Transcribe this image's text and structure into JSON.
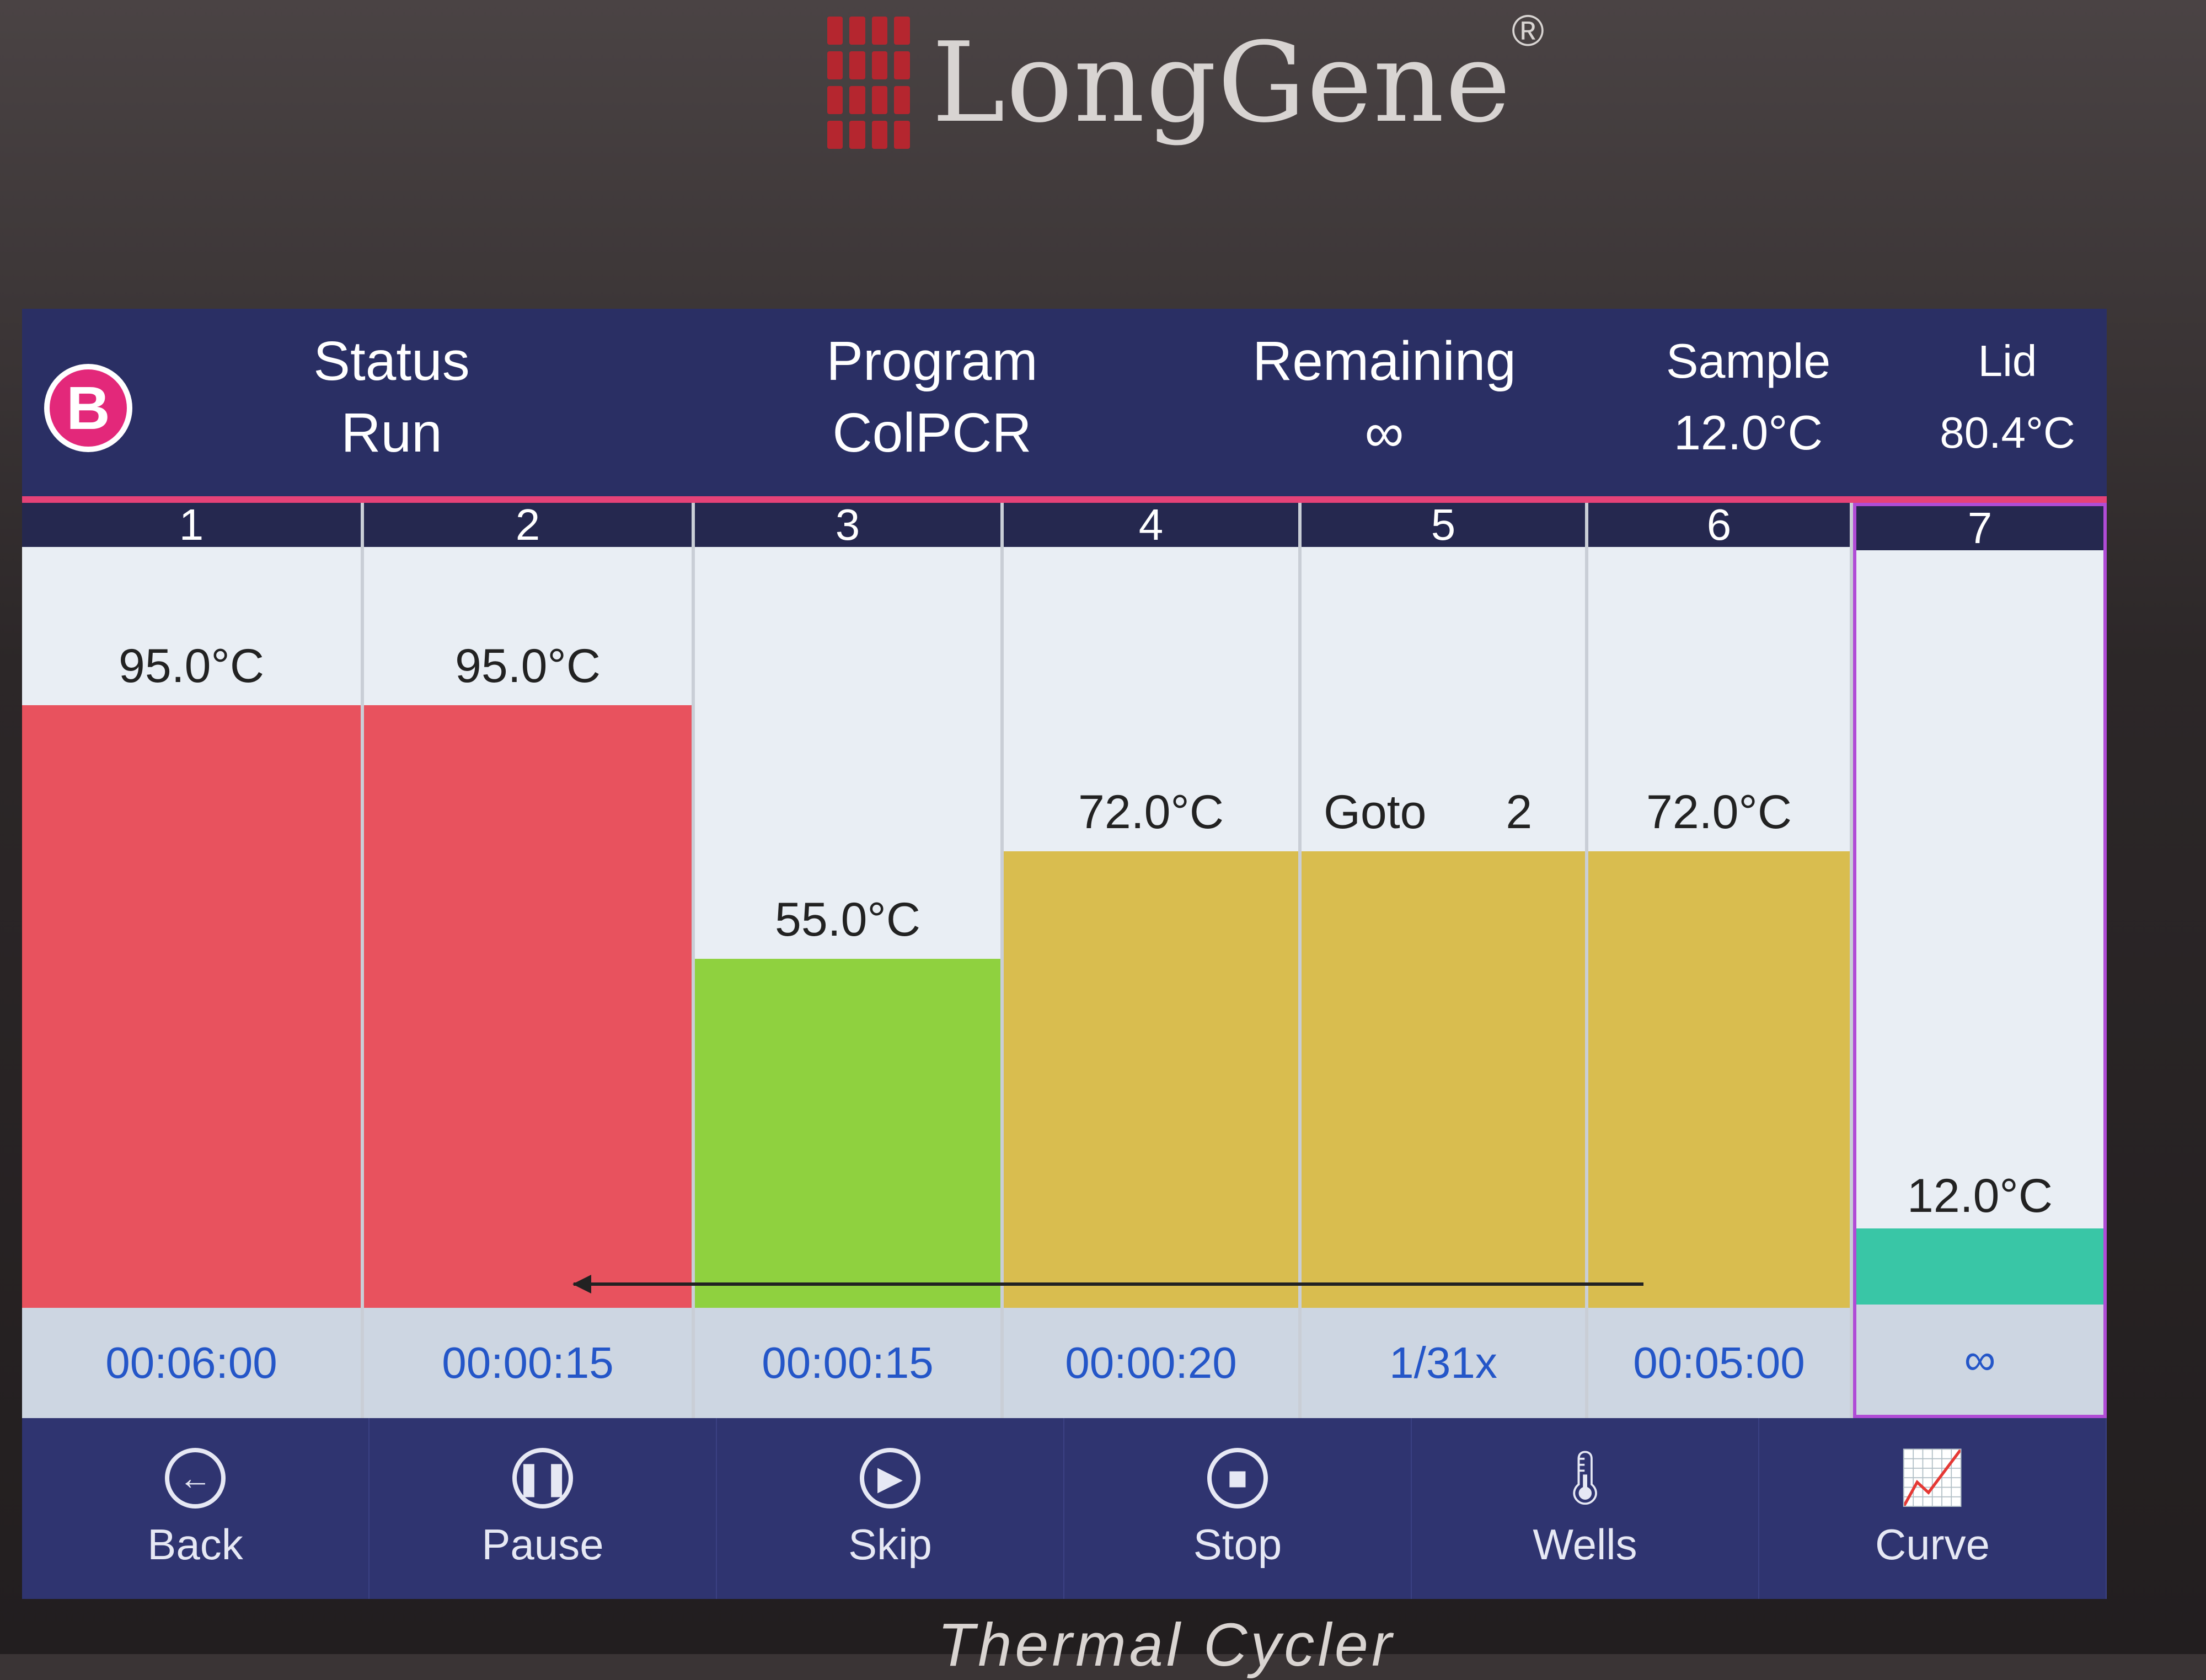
{
  "brand": {
    "name": "LongGene",
    "registered": "®"
  },
  "footer": {
    "label": "Thermal Cycler"
  },
  "header": {
    "badge": "B",
    "status_label": "Status",
    "status_value": "Run",
    "program_label": "Program",
    "program_value": "ColPCR",
    "remaining_label": "Remaining",
    "remaining_value": "∞",
    "sample_label": "Sample",
    "sample_value": "12.0°C",
    "lid_label": "Lid",
    "lid_value": "80.4°C"
  },
  "steps": [
    {
      "num": "1",
      "temp": "95.0°C",
      "temp_value": 95.0,
      "time": "00:06:00",
      "color": "#e8525e"
    },
    {
      "num": "2",
      "temp": "95.0°C",
      "temp_value": 95.0,
      "time": "00:00:15",
      "color": "#e8525e"
    },
    {
      "num": "3",
      "temp": "55.0°C",
      "temp_value": 55.0,
      "time": "00:00:15",
      "color": "#8fd13f"
    },
    {
      "num": "4",
      "temp": "72.0°C",
      "temp_value": 72.0,
      "time": "00:00:20",
      "color": "#d9bd4f"
    },
    {
      "num": "5",
      "goto_label": "Goto",
      "goto_step": "2",
      "cycles": "1/31x",
      "color": "#d9bd4f"
    },
    {
      "num": "6",
      "temp": "72.0°C",
      "temp_value": 72.0,
      "time": "00:05:00",
      "color": "#d9bd4f"
    },
    {
      "num": "7",
      "temp": "12.0°C",
      "temp_value": 12.0,
      "time": "∞",
      "color": "#39c6a6"
    }
  ],
  "buttons": [
    {
      "label": "Back",
      "icon": "back-arrow-icon"
    },
    {
      "label": "Pause",
      "icon": "pause-icon"
    },
    {
      "label": "Skip",
      "icon": "play-icon"
    },
    {
      "label": "Stop",
      "icon": "stop-icon"
    },
    {
      "label": "Wells",
      "icon": "thermometer-icon"
    },
    {
      "label": "Curve",
      "icon": "curve-chart-icon"
    }
  ]
}
